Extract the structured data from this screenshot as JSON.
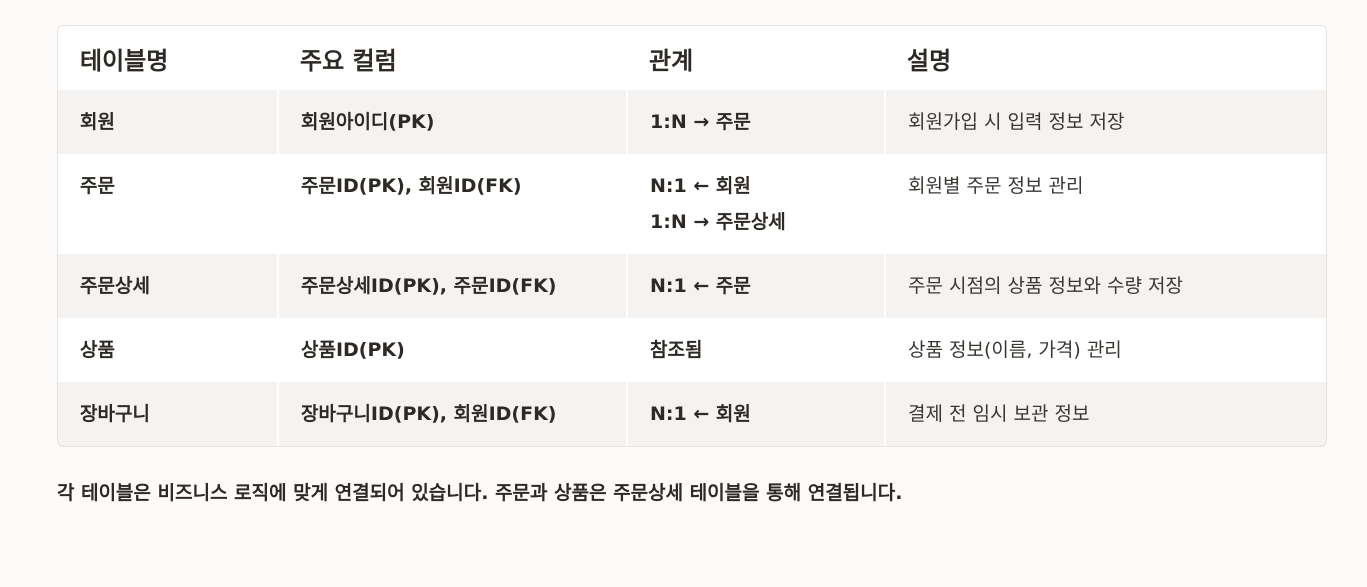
{
  "table": {
    "headers": [
      "테이블명",
      "주요 컬럼",
      "관계",
      "설명"
    ],
    "rows": [
      {
        "name": "회원",
        "columns": "회원아이디(PK)",
        "relation": [
          "1:N → 주문"
        ],
        "description": "회원가입 시 입력 정보 저장"
      },
      {
        "name": "주문",
        "columns": "주문ID(PK), 회원ID(FK)",
        "relation": [
          "N:1 ← 회원",
          "1:N → 주문상세"
        ],
        "description": "회원별 주문 정보 관리"
      },
      {
        "name": "주문상세",
        "columns": "주문상세ID(PK), 주문ID(FK)",
        "relation": [
          "N:1 ← 주문"
        ],
        "description": "주문 시점의 상품 정보와 수량 저장"
      },
      {
        "name": "상품",
        "columns": "상품ID(PK)",
        "relation": [
          "참조됨"
        ],
        "description": "상품 정보(이름, 가격) 관리"
      },
      {
        "name": "장바구니",
        "columns": "장바구니ID(PK), 회원ID(FK)",
        "relation": [
          "N:1 ← 회원"
        ],
        "description": "결제 전 임시 보관 정보"
      }
    ]
  },
  "footer_note": "각 테이블은 비즈니스 로직에 맞게 연결되어 있습니다. 주문과 상품은 주문상세 테이블을 통해 연결됩니다.",
  "colors": {
    "background": "#fcfbfa",
    "row_alt": "#f4f3f2",
    "text": "#2d2a26"
  }
}
